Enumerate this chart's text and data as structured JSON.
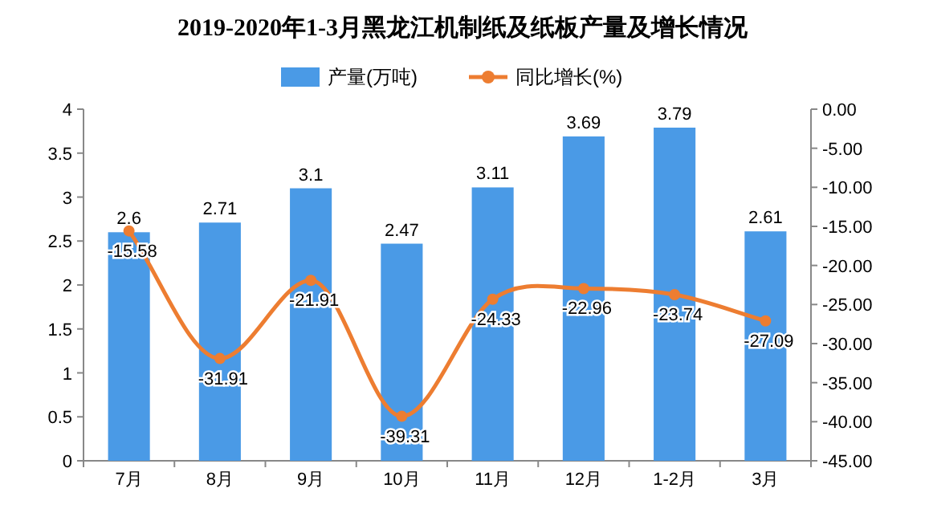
{
  "chart_data": {
    "type": "bar",
    "title": "2019-2020年1-3月黑龙江机制纸及纸板产量及增长情况",
    "categories": [
      "7月",
      "8月",
      "9月",
      "10月",
      "11月",
      "12月",
      "1-2月",
      "3月"
    ],
    "series": [
      {
        "name": "产量(万吨)",
        "color": "#4a9ae6",
        "values": [
          2.6,
          2.71,
          3.1,
          2.47,
          3.11,
          3.69,
          3.79,
          2.61
        ]
      },
      {
        "name": "同比增长(%)",
        "type": "line",
        "axis": "y2",
        "color": "#ed7d31",
        "marker": "circle",
        "values": [
          -15.58,
          -31.91,
          -21.91,
          -39.31,
          -24.33,
          -22.96,
          -23.74,
          -27.09
        ]
      }
    ],
    "ylim": [
      0,
      4
    ],
    "yticks": [
      0,
      0.5,
      1,
      1.5,
      2,
      2.5,
      3,
      3.5,
      4
    ],
    "y2lim": [
      -45,
      0
    ],
    "y2ticks": [
      {
        "value": 0,
        "label": "0.00"
      },
      {
        "value": -5,
        "label": "-5.00"
      },
      {
        "value": -10,
        "label": "-10.00"
      },
      {
        "value": -15,
        "label": "-15.00"
      },
      {
        "value": -20,
        "label": "-20.00"
      },
      {
        "value": -25,
        "label": "-25.00"
      },
      {
        "value": -30,
        "label": "-30.00"
      },
      {
        "value": -35,
        "label": "-35.00"
      },
      {
        "value": -40,
        "label": "-40.00"
      },
      {
        "value": -45,
        "label": "-45.00"
      }
    ],
    "data_labels": true,
    "legend": "top",
    "grid": false
  }
}
